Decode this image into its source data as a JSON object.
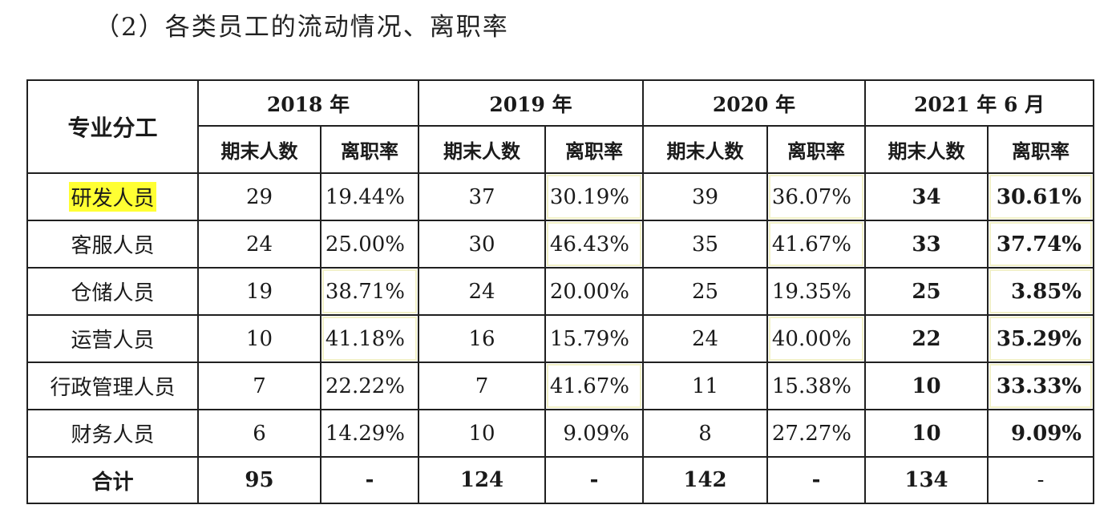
{
  "heading": "（2）各类员工的流动情况、离职率",
  "table": {
    "category_header": "专业分工",
    "years": [
      "2018 年",
      "2019 年",
      "2020 年",
      "2021 年 6 月"
    ],
    "sub_headers": [
      "期末人数",
      "离职率",
      "期末人数",
      "离职率",
      "期末人数",
      "离职率",
      "期末人数",
      "离职率"
    ],
    "rows": [
      {
        "category": "研发人员",
        "values": [
          "29",
          "19.44%",
          "37",
          "30.19%",
          "39",
          "36.07%",
          "34",
          "30.61%"
        ]
      },
      {
        "category": "客服人员",
        "values": [
          "24",
          "25.00%",
          "30",
          "46.43%",
          "35",
          "41.67%",
          "33",
          "37.74%"
        ]
      },
      {
        "category": "仓储人员",
        "values": [
          "19",
          "38.71%",
          "24",
          "20.00%",
          "25",
          "19.35%",
          "25",
          "3.85%"
        ]
      },
      {
        "category": "运营人员",
        "values": [
          "10",
          "41.18%",
          "16",
          "15.79%",
          "24",
          "40.00%",
          "22",
          "35.29%"
        ]
      },
      {
        "category": "行政管理人员",
        "values": [
          "7",
          "22.22%",
          "7",
          "41.67%",
          "11",
          "15.38%",
          "10",
          "33.33%"
        ]
      },
      {
        "category": "财务人员",
        "values": [
          "6",
          "14.29%",
          "10",
          "9.09%",
          "8",
          "27.27%",
          "10",
          "9.09%"
        ]
      }
    ],
    "total": {
      "category": "合计",
      "values": [
        "95",
        "-",
        "124",
        "-",
        "142",
        "-",
        "134",
        "-"
      ]
    }
  },
  "highlight_color": "#ffff33"
}
